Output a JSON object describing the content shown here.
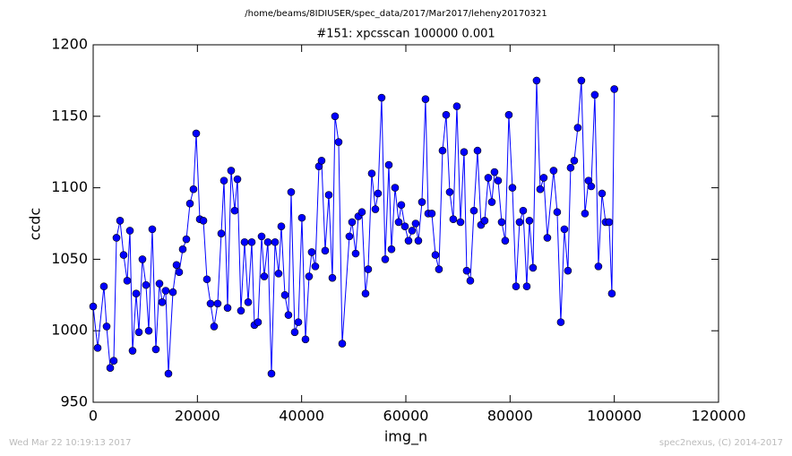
{
  "chart_data": {
    "type": "line",
    "suptitle": "/home/beams/8IDIUSER/spec_data/2017/Mar2017/leheny20170321",
    "title": "#151: xpcsscan 100000 0.001",
    "xlabel": "img_n",
    "ylabel": "ccdc",
    "footer_left": "Wed Mar 22 10:19:13 2017",
    "footer_right": "spec2nexus, (C) 2014-2017",
    "xlim": [
      0,
      120000
    ],
    "xticks": [
      0,
      20000,
      40000,
      60000,
      80000,
      100000,
      120000
    ],
    "ylim": [
      950,
      1200
    ],
    "yticks": [
      950,
      1000,
      1050,
      1100,
      1150,
      1200
    ],
    "x": [
      0,
      860,
      2060,
      2580,
      3270,
      3950,
      4470,
      5160,
      5840,
      6530,
      7050,
      7560,
      8250,
      8770,
      9450,
      10140,
      10660,
      11340,
      12030,
      12720,
      13240,
      13920,
      14440,
      15300,
      15990,
      16500,
      17190,
      17880,
      18570,
      19250,
      19770,
      20460,
      21150,
      21830,
      22520,
      23210,
      23890,
      24580,
      25100,
      25790,
      26470,
      27160,
      27680,
      28360,
      29050,
      29740,
      30430,
      30940,
      31630,
      32320,
      32830,
      33520,
      34210,
      34900,
      35580,
      36100,
      36790,
      37470,
      37990,
      38680,
      39370,
      40050,
      40740,
      41430,
      41940,
      42630,
      43320,
      43830,
      44520,
      45210,
      45900,
      46410,
      47100,
      47790,
      49160,
      49680,
      50370,
      50880,
      51570,
      52260,
      52770,
      53460,
      54150,
      54660,
      55350,
      56040,
      56730,
      57240,
      57930,
      58620,
      59130,
      59820,
      60510,
      61200,
      61880,
      62400,
      63090,
      63770,
      64290,
      64980,
      65670,
      66350,
      67040,
      67730,
      68420,
      69100,
      69790,
      70480,
      71170,
      71680,
      72370,
      73060,
      73750,
      74430,
      75120,
      75810,
      76500,
      77010,
      77700,
      78390,
      79070,
      79760,
      80450,
      81140,
      81820,
      82510,
      83200,
      83710,
      84400,
      85090,
      85780,
      86460,
      87150,
      88350,
      89040,
      89730,
      90420,
      91100,
      91620,
      92310,
      92990,
      93680,
      94370,
      95060,
      95570,
      96260,
      96950,
      97640,
      98330,
      99010,
      99530,
      100000
    ],
    "series": [
      {
        "name": "ccdc",
        "color": "#0000ff",
        "values": [
          1017,
          988,
          1031,
          1003,
          974,
          979,
          1065,
          1077,
          1053,
          1035,
          1070,
          986,
          1026,
          999,
          1050,
          1032,
          1000,
          1071,
          987,
          1033,
          1020,
          1028,
          970,
          1027,
          1046,
          1041,
          1057,
          1064,
          1089,
          1099,
          1138,
          1078,
          1077,
          1036,
          1019,
          1003,
          1019,
          1068,
          1105,
          1016,
          1112,
          1084,
          1106,
          1014,
          1062,
          1020,
          1062,
          1004,
          1006,
          1066,
          1038,
          1062,
          970,
          1062,
          1040,
          1073,
          1025,
          1011,
          1097,
          999,
          1006,
          1079,
          994,
          1038,
          1055,
          1045,
          1115,
          1119,
          1056,
          1095,
          1037,
          1150,
          1132,
          991,
          1066,
          1076,
          1054,
          1080,
          1083,
          1026,
          1043,
          1110,
          1085,
          1096,
          1163,
          1050,
          1116,
          1057,
          1100,
          1076,
          1088,
          1073,
          1063,
          1070,
          1075,
          1063,
          1090,
          1162,
          1082,
          1082,
          1053,
          1043,
          1126,
          1151,
          1097,
          1078,
          1157,
          1076,
          1125,
          1042,
          1035,
          1084,
          1126,
          1074,
          1077,
          1107,
          1090,
          1111,
          1105,
          1076,
          1063,
          1151,
          1100,
          1031,
          1076,
          1084,
          1031,
          1077,
          1044,
          1175,
          1099,
          1107,
          1065,
          1112,
          1083,
          1006,
          1071,
          1042,
          1114,
          1119,
          1142,
          1175,
          1082,
          1105,
          1101,
          1165,
          1045,
          1096,
          1076,
          1076,
          1026,
          1169
        ]
      }
    ]
  }
}
